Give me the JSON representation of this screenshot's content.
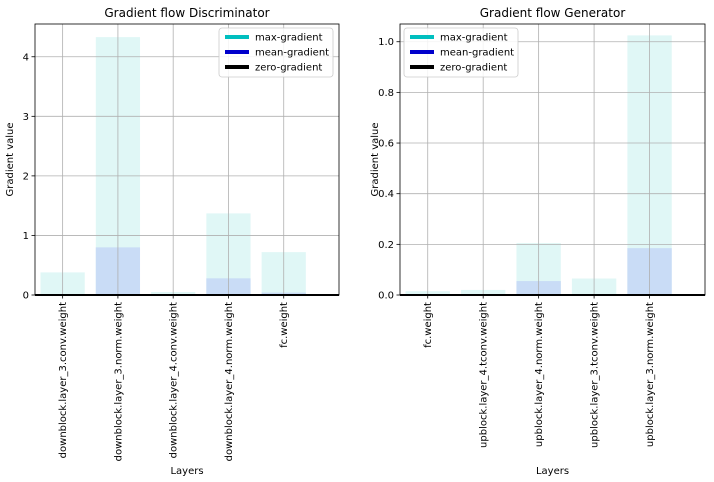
{
  "chart_data": [
    {
      "type": "bar",
      "title": "Gradient flow Discriminator",
      "xlabel": "Layers",
      "ylabel": "Gradient value",
      "categories": [
        "downblock.layer_3.conv.weight",
        "downblock.layer_3.norm.weight",
        "downblock.layer_4.conv.weight",
        "downblock.layer_4.norm.weight",
        "fc.weight"
      ],
      "ylim": [
        0,
        4.55
      ],
      "yticks": [
        0,
        1,
        2,
        3,
        4
      ],
      "grid": true,
      "legend_position": "top-right",
      "series": [
        {
          "name": "max-gradient",
          "color": "#00bfbf",
          "values": [
            0.38,
            4.33,
            0.05,
            1.37,
            0.72
          ]
        },
        {
          "name": "mean-gradient",
          "color": "#0000cc",
          "values": [
            0.0,
            0.8,
            0.0,
            0.28,
            0.04
          ]
        }
      ],
      "legend": [
        {
          "name": "max-gradient",
          "color": "#00bfbf"
        },
        {
          "name": "mean-gradient",
          "color": "#0000cc"
        },
        {
          "name": "zero-gradient",
          "color": "#000000"
        }
      ]
    },
    {
      "type": "bar",
      "title": "Gradient flow Generator",
      "xlabel": "Layers",
      "ylabel": "Gradient value",
      "categories": [
        "fc.weight",
        "upblock.layer_4.tconv.weight",
        "upblock.layer_4.norm.weight",
        "upblock.layer_3.tconv.weight",
        "upblock.layer_3.norm.weight"
      ],
      "ylim": [
        0,
        1.07
      ],
      "yticks": [
        0.0,
        0.2,
        0.4,
        0.6,
        0.8,
        1.0
      ],
      "grid": true,
      "legend_position": "top-left",
      "series": [
        {
          "name": "max-gradient",
          "color": "#00bfbf",
          "values": [
            0.015,
            0.02,
            0.205,
            0.065,
            1.025
          ]
        },
        {
          "name": "mean-gradient",
          "color": "#0000cc",
          "values": [
            0.0,
            0.0,
            0.055,
            0.0,
            0.185
          ]
        }
      ],
      "legend": [
        {
          "name": "max-gradient",
          "color": "#00bfbf"
        },
        {
          "name": "mean-gradient",
          "color": "#0000cc"
        },
        {
          "name": "zero-gradient",
          "color": "#000000"
        }
      ]
    }
  ]
}
